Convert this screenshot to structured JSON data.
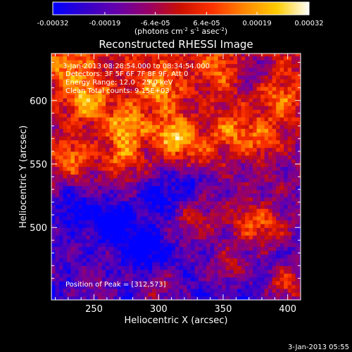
{
  "colorbar": {
    "tick_labels": [
      "-0.00032",
      "-0.00019",
      "-6.4e-05",
      "6.4e-05",
      "0.00019",
      "0.00032"
    ],
    "tick_values": [
      -0.00032,
      -0.00019,
      -6.4e-05,
      6.4e-05,
      0.00019,
      0.00032
    ],
    "range": [
      -0.00032,
      0.00032
    ],
    "units_main": "(photons cm",
    "units_exp1": "-2",
    "units_mid": " s",
    "units_exp2": "-1",
    "units_end": " asec",
    "units_exp3": "-2",
    "units_close": ")",
    "colormap": [
      "#0000ff",
      "#3300cc",
      "#6600aa",
      "#990066",
      "#cc1000",
      "#ff3300",
      "#ff8800",
      "#ffcc00",
      "#ffffff"
    ]
  },
  "footer_date": "3-Jan-2013 05:55",
  "chart_data": {
    "type": "heatmap",
    "title": "Reconstructed RHESSI Image",
    "xlabel": "Heliocentric X (arcsec)",
    "ylabel": "Heliocentric Y (arcsec)",
    "xlim": [
      217,
      410
    ],
    "ylim": [
      443,
      637
    ],
    "x_ticks": [
      250,
      300,
      350,
      400
    ],
    "y_ticks": [
      500,
      550,
      600
    ],
    "x_tick_labels": [
      "250",
      "300",
      "350",
      "400"
    ],
    "y_tick_labels": [
      "500",
      "550",
      "600"
    ],
    "annotations": {
      "time_range": "3-Jan-2013 08:28:54.000 to 08:34:54.000",
      "detectors": "Detectors: 3F 5F 6F 7F 8F 9F, Att 0",
      "energy": "Energy Range: 12.0 - 25.0 keV",
      "method": "Clean    Total counts: 9.15E+03",
      "peak": "Position of Peak = [312,573]"
    },
    "peak_position": [
      312,
      573
    ],
    "bright_regions": [
      {
        "x": 312,
        "y": 573,
        "level": 1.0
      },
      {
        "x": 275,
        "y": 580,
        "level": 0.85
      },
      {
        "x": 245,
        "y": 600,
        "level": 0.8
      },
      {
        "x": 300,
        "y": 610,
        "level": 0.7
      },
      {
        "x": 355,
        "y": 575,
        "level": 0.6
      },
      {
        "x": 380,
        "y": 570,
        "level": 0.55
      },
      {
        "x": 232,
        "y": 555,
        "level": 0.75
      },
      {
        "x": 272,
        "y": 555,
        "level": 0.65
      },
      {
        "x": 330,
        "y": 555,
        "level": 0.55
      },
      {
        "x": 395,
        "y": 600,
        "level": 0.5
      },
      {
        "x": 367,
        "y": 505,
        "level": 0.55
      },
      {
        "x": 385,
        "y": 500,
        "level": 0.6
      },
      {
        "x": 330,
        "y": 505,
        "level": 0.45
      },
      {
        "x": 355,
        "y": 470,
        "level": 0.55
      },
      {
        "x": 400,
        "y": 455,
        "level": 0.85
      },
      {
        "x": 300,
        "y": 450,
        "level": 0.5
      },
      {
        "x": 250,
        "y": 450,
        "level": 0.4
      },
      {
        "x": 230,
        "y": 625,
        "level": 0.55
      },
      {
        "x": 350,
        "y": 625,
        "level": 0.45
      }
    ],
    "dark_regions": [
      {
        "x": 265,
        "y": 505,
        "level": -0.85
      },
      {
        "x": 290,
        "y": 485,
        "level": -0.7
      },
      {
        "x": 235,
        "y": 515,
        "level": -0.6
      },
      {
        "x": 325,
        "y": 540,
        "level": -0.55
      },
      {
        "x": 370,
        "y": 625,
        "level": -0.5
      },
      {
        "x": 300,
        "y": 525,
        "level": -0.6
      }
    ]
  }
}
